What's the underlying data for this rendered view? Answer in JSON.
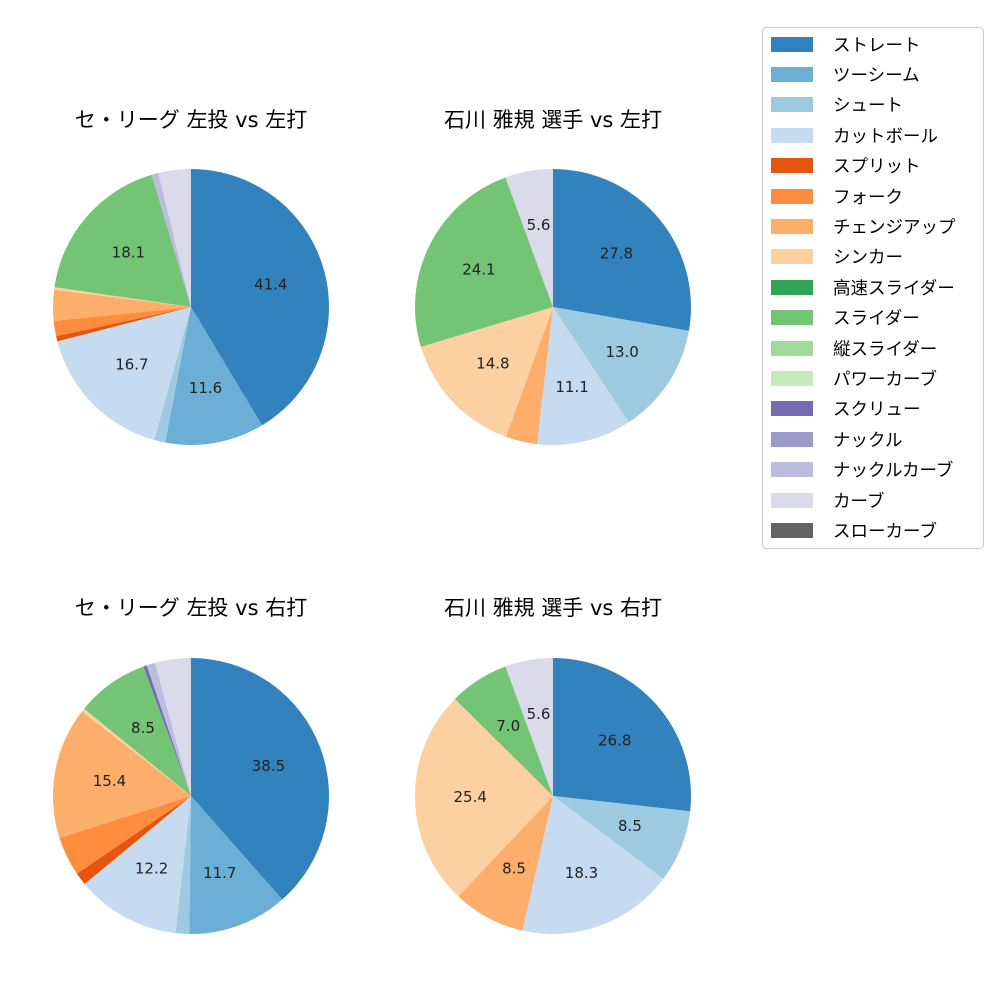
{
  "chart_data": [
    {
      "type": "pie",
      "title": "セ・リーグ 左投 vs 左打",
      "categories": [
        "ストレート",
        "ツーシーム",
        "シュート",
        "カットボール",
        "スプリット",
        "フォーク",
        "チェンジアップ",
        "シンカー",
        "スライダー",
        "ナックルカーブ",
        "カーブ"
      ],
      "values": [
        41.4,
        11.6,
        1.3,
        16.7,
        0.6,
        1.8,
        3.6,
        0.3,
        18.1,
        0.8,
        3.8
      ],
      "labels_shown": [
        "41.4",
        "11.6",
        "",
        "16.7",
        "",
        "",
        "",
        "",
        "18.1",
        "",
        ""
      ]
    },
    {
      "type": "pie",
      "title": "石川 雅規 選手 vs 左打",
      "categories": [
        "ストレート",
        "シュート",
        "カットボール",
        "チェンジアップ",
        "シンカー",
        "スライダー",
        "カーブ"
      ],
      "values": [
        27.8,
        13.0,
        11.1,
        3.7,
        14.8,
        24.1,
        5.6
      ],
      "labels_shown": [
        "27.8",
        "13.0",
        "11.1",
        "",
        "14.8",
        "24.1",
        "5.6"
      ]
    },
    {
      "type": "pie",
      "title": "セ・リーグ 左投 vs 右打",
      "categories": [
        "ストレート",
        "ツーシーム",
        "シュート",
        "カットボール",
        "スプリット",
        "フォーク",
        "チェンジアップ",
        "シンカー",
        "スライダー",
        "スクリュー",
        "ナックルカーブ",
        "カーブ"
      ],
      "values": [
        38.5,
        11.7,
        1.6,
        12.2,
        1.5,
        4.6,
        15.4,
        0.4,
        8.5,
        0.4,
        1.0,
        4.2
      ],
      "labels_shown": [
        "38.5",
        "11.7",
        "",
        "12.2",
        "",
        "",
        "15.4",
        "",
        "8.5",
        "",
        "",
        ""
      ]
    },
    {
      "type": "pie",
      "title": "石川 雅規 選手 vs 右打",
      "categories": [
        "ストレート",
        "シュート",
        "カットボール",
        "チェンジアップ",
        "シンカー",
        "スライダー",
        "カーブ"
      ],
      "values": [
        26.8,
        8.5,
        18.3,
        8.5,
        25.4,
        7.0,
        5.6
      ],
      "labels_shown": [
        "26.8",
        "8.5",
        "18.3",
        "8.5",
        "25.4",
        "7.0",
        "5.6"
      ]
    }
  ],
  "legend": {
    "items": [
      {
        "label": "ストレート",
        "color": "#3182bd"
      },
      {
        "label": "ツーシーム",
        "color": "#6baed6"
      },
      {
        "label": "シュート",
        "color": "#9ecae1"
      },
      {
        "label": "カットボール",
        "color": "#c6dbef"
      },
      {
        "label": "スプリット",
        "color": "#e6550d"
      },
      {
        "label": "フォーク",
        "color": "#fd8d3c"
      },
      {
        "label": "チェンジアップ",
        "color": "#fdae6b"
      },
      {
        "label": "シンカー",
        "color": "#fdd0a2"
      },
      {
        "label": "高速スライダー",
        "color": "#31a354"
      },
      {
        "label": "スライダー",
        "color": "#74c476"
      },
      {
        "label": "縦スライダー",
        "color": "#a1d99b"
      },
      {
        "label": "パワーカーブ",
        "color": "#c7e9c0"
      },
      {
        "label": "スクリュー",
        "color": "#756bb1"
      },
      {
        "label": "ナックル",
        "color": "#9e9ac8"
      },
      {
        "label": "ナックルカーブ",
        "color": "#bcbddc"
      },
      {
        "label": "カーブ",
        "color": "#dadaeb"
      },
      {
        "label": "スローカーブ",
        "color": "#636363"
      }
    ]
  },
  "panels": [
    {
      "title": "セ・リーグ 左投 vs 左打"
    },
    {
      "title": "石川 雅規 選手 vs 左打"
    },
    {
      "title": "セ・リーグ 左投 vs 右打"
    },
    {
      "title": "石川 雅規 選手 vs 右打"
    }
  ]
}
